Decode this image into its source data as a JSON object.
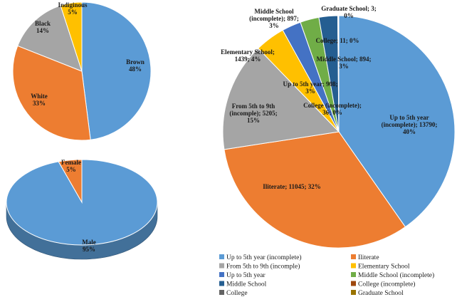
{
  "chart_data": [
    {
      "type": "pie",
      "title": "",
      "categories": [
        "Brown",
        "White",
        "Black",
        "Indiginous"
      ],
      "values": [
        48,
        33,
        14,
        5
      ],
      "labels": [
        [
          "Brown",
          "48%"
        ],
        [
          "White",
          "33%"
        ],
        [
          "Black",
          "14%"
        ],
        [
          "Indiginous",
          "5%"
        ]
      ],
      "colors": [
        "#5b9bd5",
        "#ed7d31",
        "#a5a5a5",
        "#ffc000"
      ]
    },
    {
      "type": "pie",
      "title": "",
      "categories": [
        "Male",
        "Female"
      ],
      "values": [
        95,
        5
      ],
      "labels": [
        [
          "Male",
          "95%"
        ],
        [
          "Female",
          "5%"
        ]
      ],
      "colors": [
        "#5b9bd5",
        "#ed7d31"
      ]
    },
    {
      "type": "pie",
      "title": "",
      "categories": [
        "Up to 5th year (incomplete)",
        "Iliterate",
        "From 5th to 9th (incomple)",
        "Elementary School",
        "Up to 5th year",
        "Middle School (incomplete)",
        "Middle School",
        "College (incomplete)",
        "College",
        "Graduate School"
      ],
      "values": [
        13790,
        11045,
        5205,
        1439,
        908,
        897,
        894,
        36,
        11,
        3
      ],
      "labels": [
        [
          "Up to 5th year",
          "(incomplete); 13790;",
          "40%"
        ],
        [
          "Iliterate; 11045; 32%"
        ],
        [
          "From 5th to 9th",
          "(incomple); 5205;",
          "15%"
        ],
        [
          "Elementary School;",
          "1439; 4%"
        ],
        [
          "Up to 5th year; 908;",
          "3%"
        ],
        [
          "Middle School",
          "(incomplete); 897;",
          "3%"
        ],
        [
          "Middle School; 894;",
          "3%"
        ],
        [
          "College (incomplete);",
          "36; 0%"
        ],
        [
          "College; 11; 0%"
        ],
        [
          "Graduate School; 3;",
          "0%"
        ]
      ],
      "legend": [
        "Up to 5th year (incomplete)",
        "Iliterate",
        "From 5th to 9th (incomple)",
        "Elementary School",
        "Up to 5th year",
        "Middle School (incomplete)",
        "Middle School",
        "College (incomplete)",
        "College",
        "Graduate School"
      ],
      "legend_position": "bottom",
      "colors": [
        "#5b9bd5",
        "#ed7d31",
        "#a5a5a5",
        "#ffc000",
        "#4472c4",
        "#70ad47",
        "#255e91",
        "#9e480e",
        "#636363",
        "#997300"
      ]
    }
  ]
}
